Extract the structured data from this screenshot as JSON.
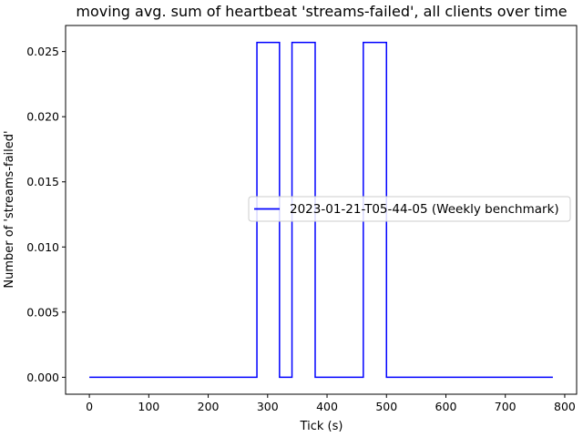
{
  "chart_data": {
    "type": "line",
    "title": "moving avg. sum of heartbeat 'streams-failed', all clients over time",
    "xlabel": "Tick (s)",
    "ylabel": "Number of 'streams-failed'",
    "xlim": [
      -40,
      820
    ],
    "ylim": [
      -0.0013,
      0.027
    ],
    "xticks": [
      0,
      100,
      200,
      300,
      400,
      500,
      600,
      700,
      800
    ],
    "xtick_labels": [
      "0",
      "100",
      "200",
      "300",
      "400",
      "500",
      "600",
      "700",
      "800"
    ],
    "yticks": [
      0.0,
      0.005,
      0.01,
      0.015,
      0.02,
      0.025
    ],
    "ytick_labels": [
      "0.000",
      "0.005",
      "0.010",
      "0.015",
      "0.020",
      "0.025"
    ],
    "grid": false,
    "legend_position": "center-right",
    "series": [
      {
        "name": "2023-01-21-T05-44-05 (Weekly benchmark)",
        "color": "#0000ff",
        "x": [
          0,
          282,
          282,
          320,
          320,
          341,
          341,
          380,
          380,
          461,
          461,
          500,
          500,
          780
        ],
        "y": [
          0,
          0,
          0.0257,
          0.0257,
          0,
          0,
          0.0257,
          0.0257,
          0,
          0,
          0.0257,
          0.0257,
          0,
          0
        ]
      }
    ]
  }
}
